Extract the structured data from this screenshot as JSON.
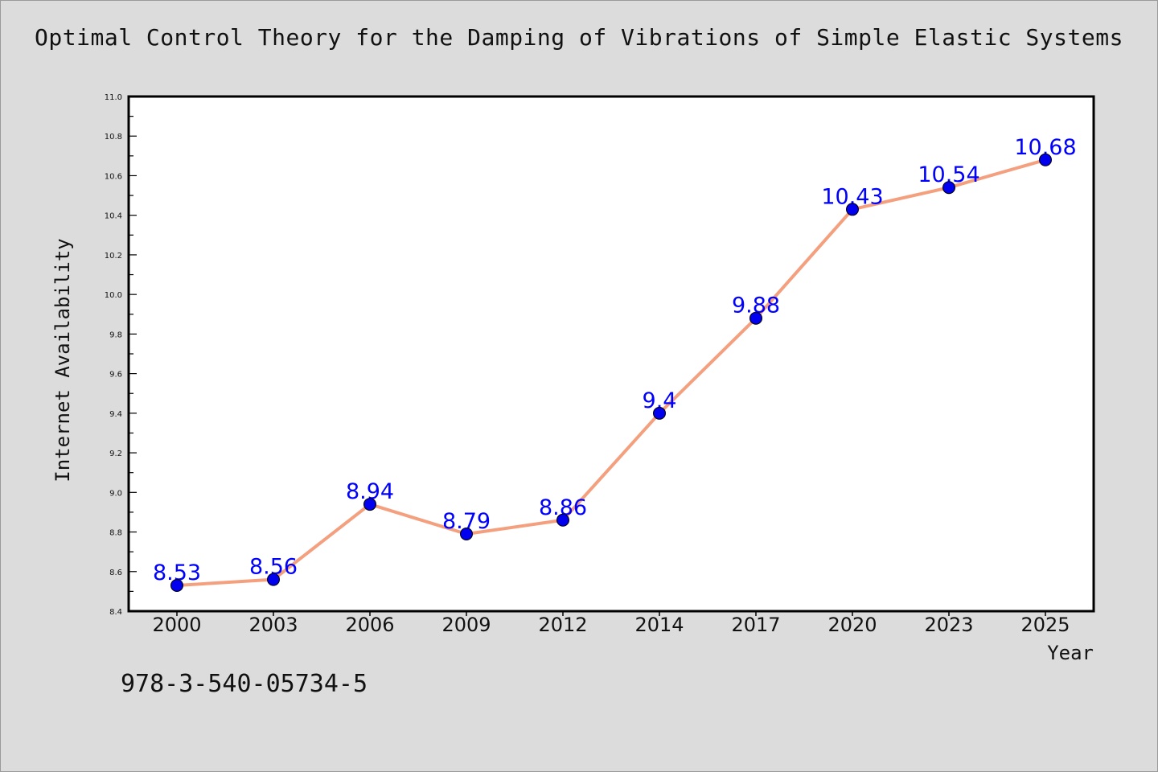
{
  "chart_data": {
    "type": "line",
    "title": "Optimal Control Theory for the Damping of Vibrations of Simple Elastic Systems",
    "xlabel": "Year",
    "ylabel": "Internet Availability",
    "categories": [
      "2000",
      "2003",
      "2006",
      "2009",
      "2012",
      "2014",
      "2017",
      "2020",
      "2023",
      "2025"
    ],
    "series": [
      {
        "values": [
          8.53,
          8.56,
          8.94,
          8.79,
          8.86,
          9.4,
          9.88,
          10.43,
          10.54,
          10.68
        ],
        "data_labels": [
          "8.53",
          "8.56",
          "8.94",
          "8.79",
          "8.86",
          "9.4",
          "9.88",
          "10.43",
          "10.54",
          "10.68"
        ],
        "line_color": "#f4a07f",
        "marker_color": "#0000ee"
      }
    ],
    "ylim": [
      8.4,
      11.0
    ],
    "yticks": [
      "8.4",
      "8.6",
      "8.8",
      "9.0",
      "9.2",
      "9.4",
      "9.6",
      "9.8",
      "10.0",
      "10.2",
      "10.4",
      "10.6",
      "10.8",
      "11.0"
    ],
    "label_color": "#0000ff",
    "plot_background": "#ffffff",
    "figure_background": "#dcdcdc",
    "grid": false,
    "legend": "none"
  },
  "footnote": "978-3-540-05734-5"
}
